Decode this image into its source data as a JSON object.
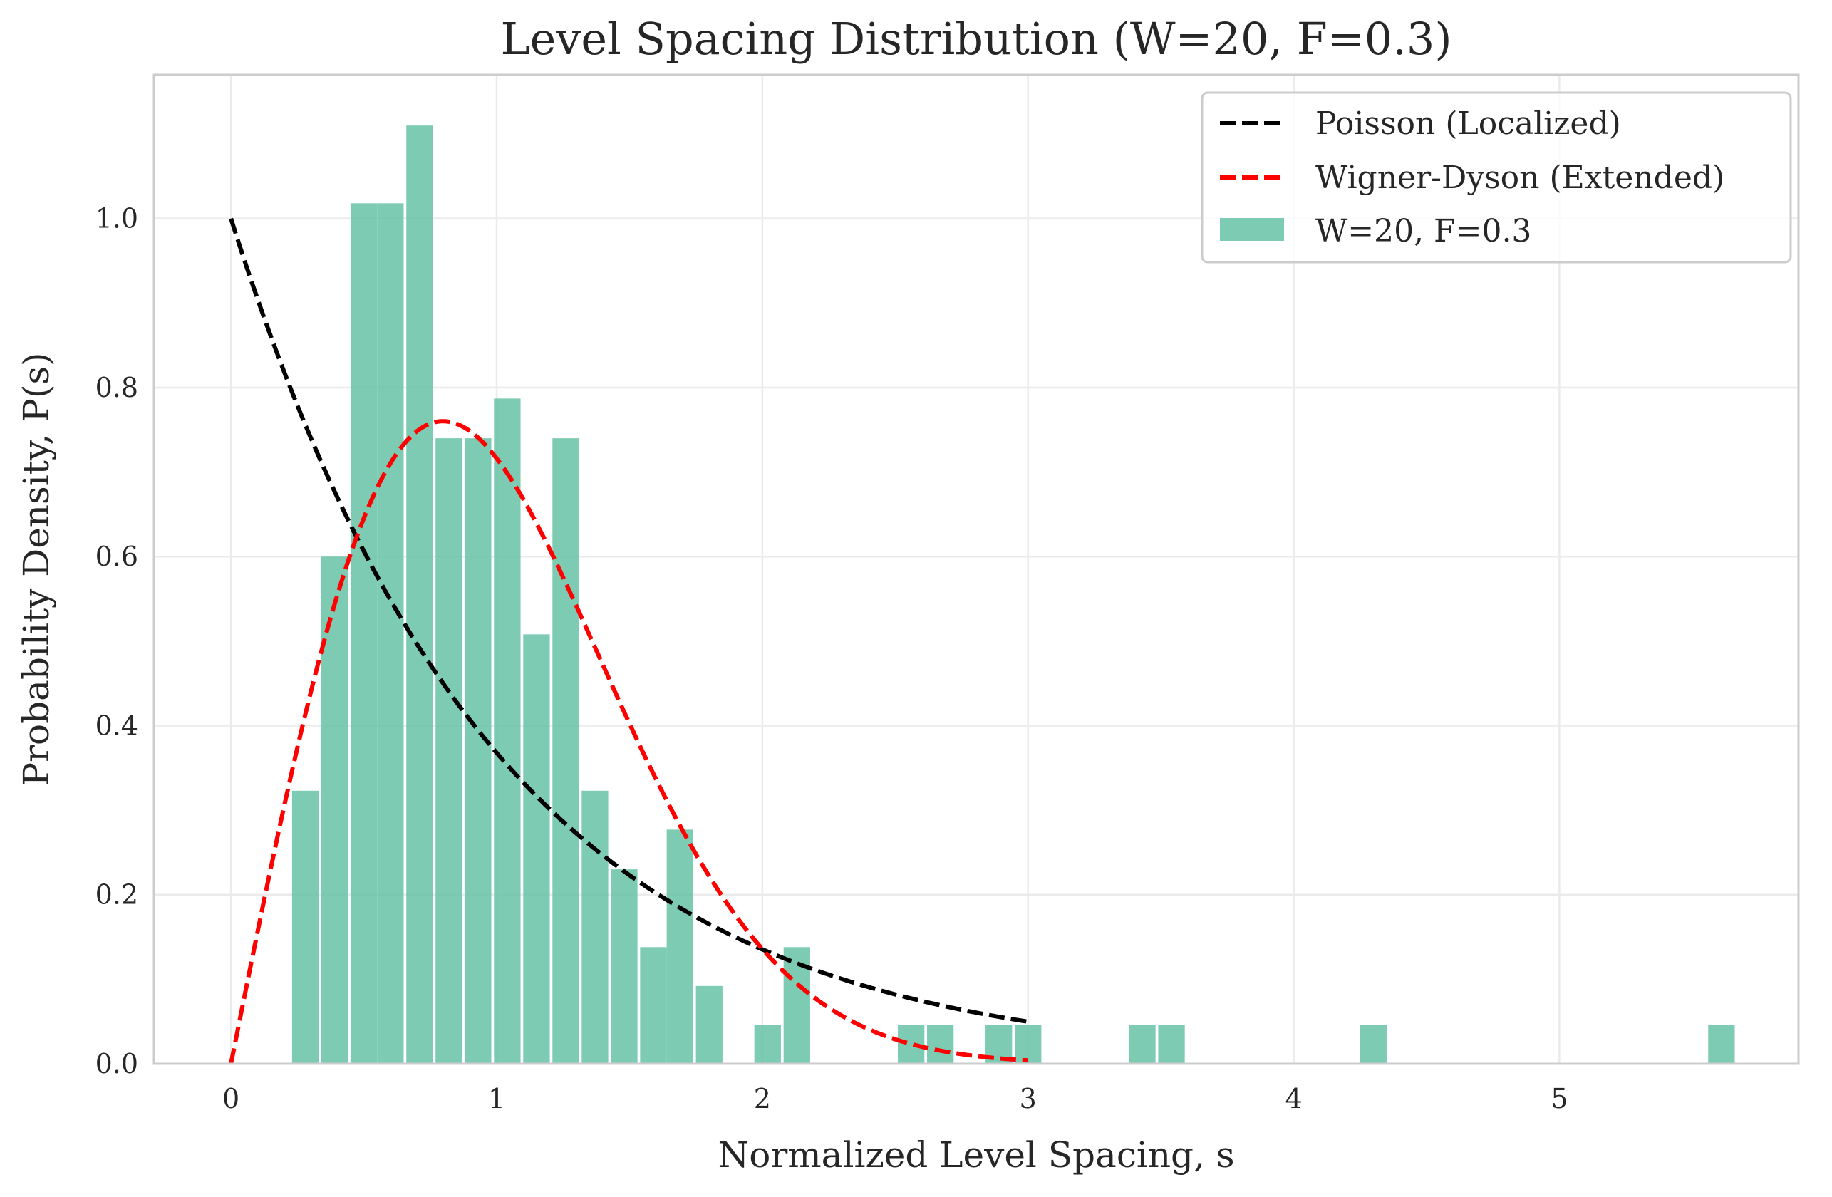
{
  "chart_data": {
    "type": "bar",
    "title": "Level Spacing Distribution (W=20, F=0.3)",
    "xlabel": "Normalized Level Spacing, s",
    "ylabel": "Probability Density, P(s)",
    "xlim": [
      -0.29,
      5.9
    ],
    "ylim": [
      0,
      1.17
    ],
    "xticks": [
      0,
      1,
      2,
      3,
      4,
      5
    ],
    "xtick_labels": [
      "0",
      "1",
      "2",
      "3",
      "4",
      "5"
    ],
    "yticks": [
      0,
      0.2,
      0.4,
      0.6,
      0.8,
      1.0
    ],
    "ytick_labels": [
      "0.0",
      "0.2",
      "0.4",
      "0.6",
      "0.8",
      "1.0"
    ],
    "grid": true,
    "legend_position": "top-right",
    "histogram": {
      "name": "W=20, F=0.3",
      "color": "#66c2a5",
      "bin_width": 0.108,
      "bins": [
        {
          "x": 0.28,
          "value": 0.323
        },
        {
          "x": 0.39,
          "value": 0.6
        },
        {
          "x": 0.5,
          "value": 1.018
        },
        {
          "x": 0.6,
          "value": 1.018
        },
        {
          "x": 0.71,
          "value": 1.11
        },
        {
          "x": 0.82,
          "value": 0.74
        },
        {
          "x": 0.93,
          "value": 0.74
        },
        {
          "x": 1.04,
          "value": 0.787
        },
        {
          "x": 1.15,
          "value": 0.508
        },
        {
          "x": 1.26,
          "value": 0.74
        },
        {
          "x": 1.37,
          "value": 0.323
        },
        {
          "x": 1.48,
          "value": 0.23
        },
        {
          "x": 1.59,
          "value": 0.138
        },
        {
          "x": 1.69,
          "value": 0.277
        },
        {
          "x": 1.8,
          "value": 0.092
        },
        {
          "x": 2.02,
          "value": 0.046
        },
        {
          "x": 2.13,
          "value": 0.138
        },
        {
          "x": 2.56,
          "value": 0.046
        },
        {
          "x": 2.67,
          "value": 0.046
        },
        {
          "x": 2.89,
          "value": 0.046
        },
        {
          "x": 3.0,
          "value": 0.046
        },
        {
          "x": 3.43,
          "value": 0.046
        },
        {
          "x": 3.54,
          "value": 0.046
        },
        {
          "x": 4.3,
          "value": 0.046
        },
        {
          "x": 5.61,
          "value": 0.046
        }
      ]
    },
    "series": [
      {
        "name": "Poisson (Localized)",
        "color": "#000000",
        "formula": "exp(-s)",
        "x_range": [
          0,
          3
        ]
      },
      {
        "name": "Wigner-Dyson (Extended)",
        "color": "#ff0000",
        "formula": "(pi/2) s exp(-pi s^2 / 4)",
        "x_range": [
          0,
          3
        ]
      }
    ],
    "legend": [
      "Poisson (Localized)",
      "Wigner-Dyson (Extended)",
      "W=20, F=0.3"
    ]
  }
}
